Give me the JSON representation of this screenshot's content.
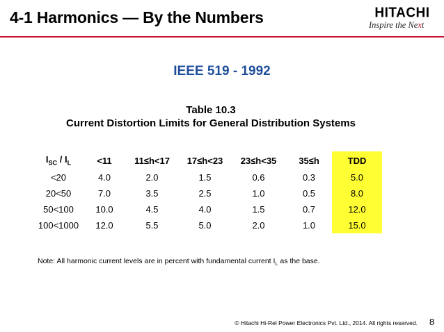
{
  "header": {
    "title": "4-1 Harmonics — By the Numbers",
    "logo_word": "HITACHI",
    "tagline_pre": "Inspire the Ne",
    "tagline_x": "x",
    "tagline_post": "t"
  },
  "subtitle": "IEEE 519 - 1992",
  "table_title": {
    "line1": "Table 10.3",
    "line2": "Current Distortion Limits for General Distribution Systems"
  },
  "table": {
    "header": {
      "ratio_I": "I",
      "ratio_sub1": "SC",
      "ratio_sep": " / I",
      "ratio_sub2": "L",
      "cols": [
        "<11",
        "11≤h<17",
        "17≤h<23",
        "23≤h<35",
        "35≤h",
        "TDD"
      ]
    },
    "rows": [
      {
        "ratio": "<20",
        "vals": [
          "4.0",
          "2.0",
          "1.5",
          "0.6",
          "0.3"
        ],
        "tdd": "5.0"
      },
      {
        "ratio": "20<50",
        "vals": [
          "7.0",
          "3.5",
          "2.5",
          "1.0",
          "0.5"
        ],
        "tdd": "8.0"
      },
      {
        "ratio": "50<100",
        "vals": [
          "10.0",
          "4.5",
          "4.0",
          "1.5",
          "0.7"
        ],
        "tdd": "12.0"
      },
      {
        "ratio": "100<1000",
        "vals": [
          "12.0",
          "5.5",
          "5.0",
          "2.0",
          "1.0"
        ],
        "tdd": "15.0"
      }
    ]
  },
  "note": {
    "pre": "Note: All harmonic current levels are in percent with fundamental current I",
    "sub": "L",
    "post": " as the base."
  },
  "footer": {
    "copyright": "© Hitachi Hi-Rel Power Electronics Pvt. Ltd., 2014. All rights reserved.",
    "page_number": "8"
  },
  "colors": {
    "accent_red": "#c8102e",
    "subtitle_blue": "#1f4e9a",
    "tdd_highlight": "#ffff33"
  }
}
